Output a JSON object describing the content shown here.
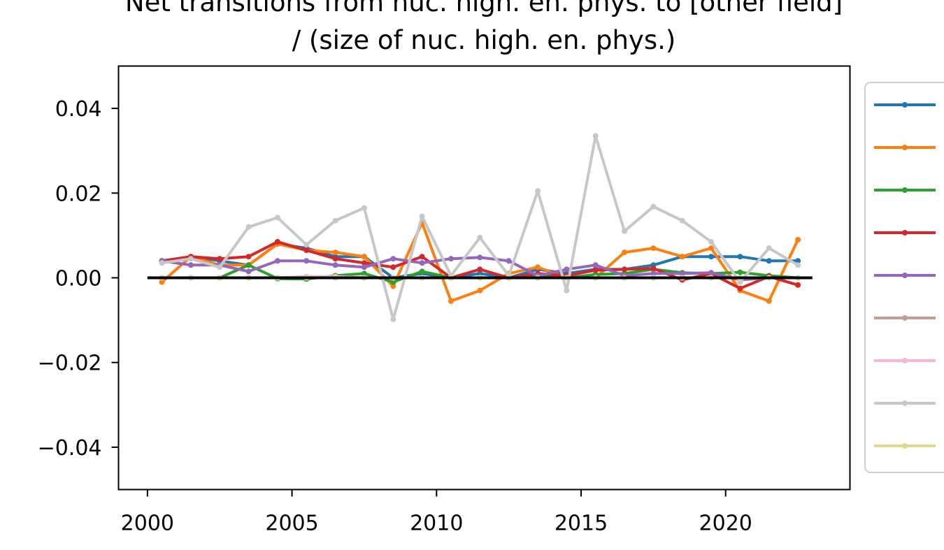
{
  "chart_data": {
    "type": "line",
    "title_line1": "Net transitions from nuc. high. en. phys. to [other field]",
    "title_line2": "/ (size of nuc. high. en. phys.)",
    "xlabel": "",
    "ylabel": "",
    "xlim": [
      1999,
      2024.3
    ],
    "ylim": [
      -0.05,
      0.05
    ],
    "xticks": [
      2000,
      2005,
      2010,
      2015,
      2020
    ],
    "yticks": [
      0.04,
      0.02,
      0.0,
      -0.02,
      -0.04
    ],
    "ytick_labels": [
      "0.04",
      "0.02",
      "0.00",
      "−0.02",
      "−0.04"
    ],
    "grid": false,
    "legend": "right, outside plot (entry labels cut off)",
    "baseline": {
      "y": 0,
      "x": [
        2000,
        2023
      ],
      "color": "#000000"
    },
    "x": [
      2000.5,
      2001.5,
      2002.5,
      2003.5,
      2004.5,
      2005.5,
      2006.5,
      2007.5,
      2008.5,
      2009.5,
      2010.5,
      2011.5,
      2012.5,
      2013.5,
      2014.5,
      2015.5,
      2016.5,
      2017.5,
      2018.5,
      2019.5,
      2020.5,
      2021.5,
      2022.5
    ],
    "series": [
      {
        "color": "#1f77b4",
        "values": [
          0.004,
          0.005,
          0.004,
          0.003,
          0.008,
          0.007,
          0.005,
          0.005,
          0.0,
          0.001,
          0.0,
          0.001,
          0.0,
          0.002,
          0.001,
          0.002,
          0.002,
          0.003,
          0.005,
          0.005,
          0.005,
          0.004,
          0.004
        ]
      },
      {
        "color": "#ff7f0e",
        "values": [
          -0.001,
          0.005,
          0.003,
          0.003,
          0.008,
          0.0065,
          0.006,
          0.005,
          -0.002,
          0.013,
          -0.0055,
          -0.003,
          0.001,
          0.0025,
          0.0,
          0.0,
          0.006,
          0.007,
          0.005,
          0.007,
          -0.003,
          -0.0055,
          0.009
        ]
      },
      {
        "color": "#2ca02c",
        "values": [
          0.0,
          0.0,
          0.0,
          0.003,
          -0.0002,
          -0.0003,
          0.0005,
          0.001,
          -0.001,
          0.0015,
          0.0,
          0.0,
          0.0,
          0.0005,
          0.0,
          0.0008,
          0.001,
          0.002,
          0.0012,
          0.001,
          0.0013,
          0.0005,
          0.0
        ]
      },
      {
        "color": "#d62728",
        "values": [
          0.004,
          0.005,
          0.0045,
          0.005,
          0.0085,
          0.0065,
          0.0045,
          0.0035,
          0.0025,
          0.005,
          0.0,
          0.002,
          0.0,
          0.001,
          0.0005,
          0.0018,
          0.002,
          0.0022,
          -0.0005,
          0.001,
          -0.0025,
          0.0003,
          -0.0017
        ]
      },
      {
        "color": "#9467bd",
        "values": [
          0.004,
          0.003,
          0.003,
          0.0015,
          0.004,
          0.004,
          0.003,
          0.0025,
          0.0045,
          0.0035,
          0.0045,
          0.0048,
          0.004,
          0.0005,
          0.002,
          0.003,
          0.0005,
          0.001,
          0.001,
          0.0012,
          -0.0005,
          0.0,
          0.0
        ]
      },
      {
        "color": "#c49c94",
        "values": [
          0.0,
          0.0,
          0.0,
          0.0,
          0.0,
          0.0,
          0.0,
          0.0,
          0.0,
          0.0,
          0.0,
          0.0,
          0.0,
          0.0,
          0.0,
          0.0,
          0.0,
          0.0,
          0.0,
          0.0,
          0.0,
          0.0,
          0.0
        ]
      },
      {
        "color": "#f7b6d2",
        "values": [
          0.0,
          0.0,
          0.0,
          0.0,
          0.0,
          0.0003,
          0.0003,
          0.0,
          0.0,
          0.0,
          0.0,
          0.0,
          0.0,
          0.0,
          0.0,
          0.0,
          0.0,
          0.0,
          0.0,
          0.0,
          0.0,
          0.0,
          0.0
        ]
      },
      {
        "color": "#c7c7c7",
        "values": [
          0.0035,
          0.0045,
          0.0025,
          0.012,
          0.0142,
          0.0078,
          0.0135,
          0.0165,
          -0.0098,
          0.0145,
          0.0005,
          0.0095,
          0.0005,
          0.0205,
          -0.003,
          0.0335,
          0.011,
          0.0168,
          0.0135,
          0.0085,
          -0.001,
          0.007,
          0.003
        ]
      },
      {
        "color": "#dbdb8d",
        "values": [
          0.0,
          0.0,
          0.0,
          0.0,
          0.0,
          0.0,
          0.0,
          0.0,
          0.0,
          0.0,
          0.0,
          0.0,
          0.0,
          0.0,
          0.0,
          0.0,
          0.0,
          0.0,
          0.0,
          0.0,
          0.0,
          0.0,
          0.0
        ]
      }
    ]
  }
}
